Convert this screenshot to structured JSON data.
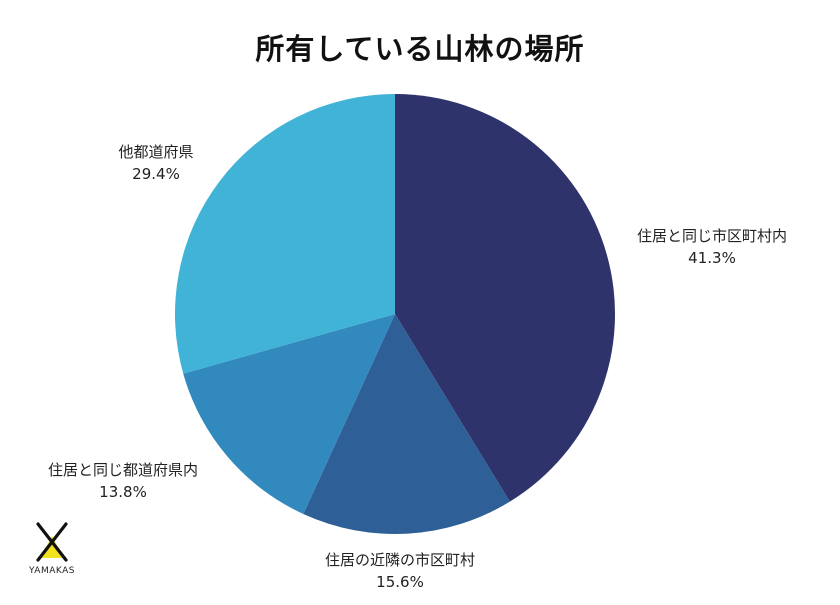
{
  "chart_data": {
    "type": "pie",
    "title": "所有している山林の場所",
    "start_angle_deg": 0,
    "direction": "clockwise",
    "slices": [
      {
        "label": "住居と同じ市区町村内",
        "value": 41.3,
        "value_label": "41.3%",
        "color": "#2f336c"
      },
      {
        "label": "住居の近隣の市区町村",
        "value": 15.6,
        "value_label": "15.6%",
        "color": "#2e5f97"
      },
      {
        "label": "住居と同じ都道府県内",
        "value": 13.8,
        "value_label": "13.8%",
        "color": "#3189bd"
      },
      {
        "label": "他都道府県",
        "value": 29.4,
        "value_label": "29.4%",
        "color": "#40b3d6"
      }
    ]
  },
  "logo": {
    "text": "YAMAKAS",
    "accent_color": "#f2e21d"
  }
}
